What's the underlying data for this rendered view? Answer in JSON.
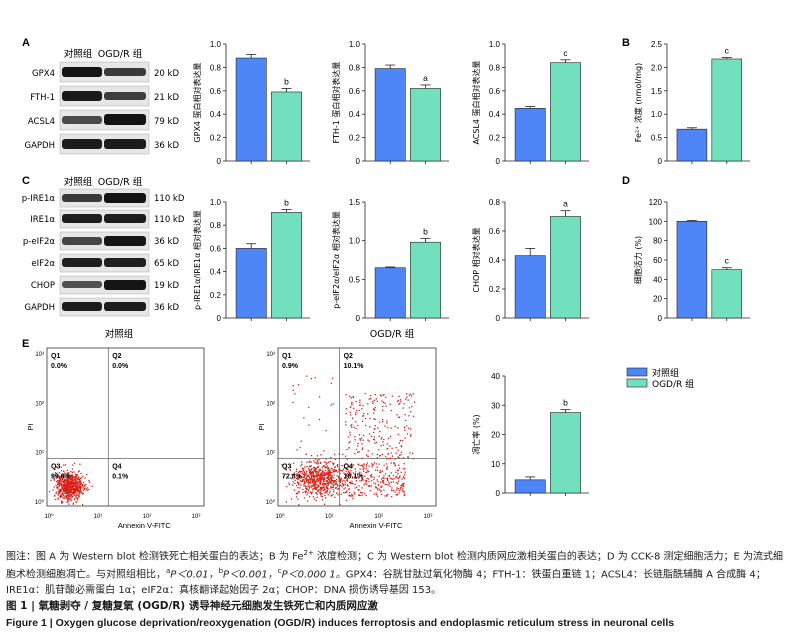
{
  "panels": {
    "A": {
      "label": "A",
      "group_headers": [
        "对照组",
        "OGD/R 组"
      ],
      "blot_rows": [
        {
          "name": "GPX4",
          "size": "20 kD"
        },
        {
          "name": "FTH-1",
          "size": "21 kD"
        },
        {
          "name": "ACSL4",
          "size": "79 kD"
        },
        {
          "name": "GAPDH",
          "size": "36 kD"
        }
      ]
    },
    "B": {
      "label": "B"
    },
    "C": {
      "label": "C",
      "group_headers": [
        "对照组",
        "OGD/R 组"
      ],
      "blot_rows": [
        {
          "name": "p-IRE1α",
          "size": "110 kD"
        },
        {
          "name": "IRE1α",
          "size": "110 kD"
        },
        {
          "name": "p-eIF2α",
          "size": "36 kD"
        },
        {
          "name": "eIF2α",
          "size": "65 kD"
        },
        {
          "name": "CHOP",
          "size": "19 kD"
        },
        {
          "name": "GAPDH",
          "size": "36 kD"
        }
      ],
      "bottom_labels": [
        "对照组",
        "OGD/R 组"
      ]
    },
    "D": {
      "label": "D"
    },
    "E": {
      "label": "E",
      "flow_plots": [
        {
          "q1": "0.0%",
          "q2": "0.0%",
          "q3": "99.9%",
          "q4": "0.1%"
        },
        {
          "q1": "0.9%",
          "q2": "10.1%",
          "q3": "72.8%",
          "q4": "16.1%"
        }
      ],
      "flow_axes": {
        "x": "Annexin V-FITC",
        "y": "PI",
        "ticks": [
          "10⁰",
          "10¹",
          "10²",
          "10³"
        ]
      }
    }
  },
  "legend": {
    "items": [
      {
        "label": "对照组",
        "color": "#4f86f7"
      },
      {
        "label": "OGD/R 组",
        "color": "#72dfbd"
      }
    ]
  },
  "colors": {
    "control": "#4f86f7",
    "ogdr": "#72dfbd"
  },
  "chart_data": [
    {
      "type": "bar",
      "id": "gpx4",
      "categories": [
        "对照组",
        "OGD/R 组"
      ],
      "values": [
        0.88,
        0.59
      ],
      "errors": [
        0.03,
        0.03
      ],
      "sig": [
        "",
        "b"
      ],
      "ylabel": "GPX4 蛋白相对表达量",
      "ylim": [
        0,
        1.0
      ],
      "ticks": [
        "0",
        "0.2",
        "0.4",
        "0.6",
        "0.8",
        "1.0"
      ]
    },
    {
      "type": "bar",
      "id": "fth1",
      "categories": [
        "对照组",
        "OGD/R 组"
      ],
      "values": [
        0.79,
        0.62
      ],
      "errors": [
        0.03,
        0.03
      ],
      "sig": [
        "",
        "a"
      ],
      "ylabel": "FTH-1 蛋白相对表达量",
      "ylim": [
        0,
        1.0
      ],
      "ticks": [
        "0",
        "0.2",
        "0.4",
        "0.6",
        "0.8",
        "1.0"
      ]
    },
    {
      "type": "bar",
      "id": "acsl4",
      "categories": [
        "对照组",
        "OGD/R 组"
      ],
      "values": [
        0.45,
        0.84
      ],
      "errors": [
        0.015,
        0.025
      ],
      "sig": [
        "",
        "c"
      ],
      "ylabel": "ACSL4 蛋白相对表达量",
      "ylim": [
        0,
        1.0
      ],
      "ticks": [
        "0",
        "0.2",
        "0.4",
        "0.6",
        "0.8",
        "1.0"
      ]
    },
    {
      "type": "bar",
      "id": "fe",
      "categories": [
        "对照组",
        "OGD/R 组"
      ],
      "values": [
        0.68,
        2.18
      ],
      "errors": [
        0.03,
        0.03
      ],
      "sig": [
        "",
        "c"
      ],
      "ylabel": "Fe²⁺ 浓度 (nmol/mg)",
      "ylim": [
        0,
        2.5
      ],
      "ticks": [
        "0",
        "0.5",
        "1.0",
        "1.5",
        "2.0",
        "2.5"
      ]
    },
    {
      "type": "bar",
      "id": "pire1",
      "categories": [
        "对照组",
        "OGD/R 组"
      ],
      "values": [
        0.6,
        0.91
      ],
      "errors": [
        0.04,
        0.025
      ],
      "sig": [
        "",
        "b"
      ],
      "ylabel": "p-IRE1α/IRE1α 相对表达量",
      "ylim": [
        0,
        1.0
      ],
      "ticks": [
        "0",
        "0.2",
        "0.4",
        "0.6",
        "0.8",
        "1.0"
      ]
    },
    {
      "type": "bar",
      "id": "peif2",
      "categories": [
        "对照组",
        "OGD/R 组"
      ],
      "values": [
        0.65,
        0.98
      ],
      "errors": [
        0.01,
        0.05
      ],
      "sig": [
        "",
        "b"
      ],
      "ylabel": "p-eIF2α/eIF2α 相对表达量",
      "ylim": [
        0,
        1.5
      ],
      "ticks": [
        "0",
        "0.5",
        "1.0",
        "1.5"
      ]
    },
    {
      "type": "bar",
      "id": "chop",
      "categories": [
        "对照组",
        "OGD/R 组"
      ],
      "values": [
        0.43,
        0.7
      ],
      "errors": [
        0.05,
        0.04
      ],
      "sig": [
        "",
        "a"
      ],
      "ylabel": "CHOP 相对表达量",
      "ylim": [
        0,
        0.8
      ],
      "ticks": [
        "0",
        "0.2",
        "0.4",
        "0.6",
        "0.8"
      ]
    },
    {
      "type": "bar",
      "id": "viability",
      "categories": [
        "对照组",
        "OGD/R 组"
      ],
      "values": [
        100,
        50
      ],
      "errors": [
        1,
        2
      ],
      "sig": [
        "",
        "c"
      ],
      "ylabel": "细胞活力 (%)",
      "ylim": [
        0,
        120
      ],
      "ticks": [
        "0",
        "20",
        "40",
        "60",
        "80",
        "100",
        "120"
      ]
    },
    {
      "type": "bar",
      "id": "apoptosis",
      "categories": [
        "对照组",
        "OGD/R 组"
      ],
      "values": [
        4.5,
        27.5
      ],
      "errors": [
        1,
        1
      ],
      "sig": [
        "",
        "b"
      ],
      "ylabel": "凋亡率 (%)",
      "ylim": [
        0,
        40
      ],
      "ticks": [
        "0",
        "10",
        "20",
        "30",
        "40"
      ]
    }
  ],
  "caption": {
    "notes_1": "图注：图 A 为 Western blot 检测铁死亡相关蛋白的表达；B 为 Fe",
    "notes_sup": "2+",
    "notes_2": " 浓度检测；C 为 Western blot 检测内质网应激相关蛋白的表达；D 为 CCK-8 测定细胞活力；E 为流式细胞术检测细胞凋亡。与对照组相比，",
    "sig_a": "a",
    "p_a": "P＜0.01，",
    "sig_b": "b",
    "p_b": "P＜0.001，",
    "sig_c": "c",
    "p_c": "P＜0.000 1。",
    "abbr": "GPX4：谷胱甘肽过氧化物酶 4；FTH-1：铁蛋白重链 1；ACSL4：长链脂酰辅酶 A 合成酶 4；IRE1α：肌苷酸必需蛋白 1α；eIF2α：真核翻译起始因子 2α；CHOP：DNA 损伤诱导基因 153。",
    "title_cn": "图 1 | 氧糖剥夺 / 复糖复氧 (OGD/R) 诱导神经元细胞发生铁死亡和内质网应激",
    "title_en": "Figure 1 | Oxygen glucose deprivation/reoxygenation (OGD/R) induces ferroptosis and endoplasmic reticulum stress in neuronal cells"
  }
}
